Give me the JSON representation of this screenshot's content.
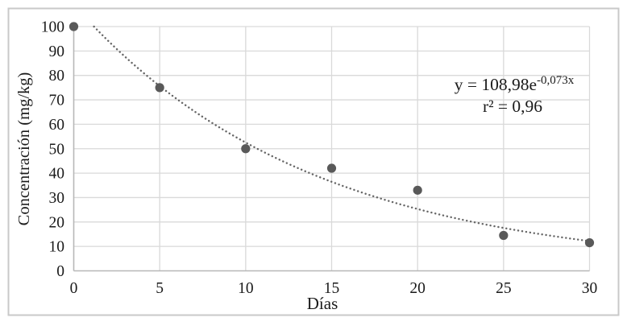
{
  "figure": {
    "background": "#ffffff",
    "border_color": "#c9c9c9"
  },
  "chart_data": {
    "type": "scatter",
    "x": [
      0,
      5,
      10,
      15,
      20,
      25,
      30
    ],
    "values": [
      100,
      75,
      50,
      42,
      33,
      14.5,
      11.5
    ],
    "title": "",
    "xlabel": "Días",
    "ylabel": "Concentración (mg/kg)",
    "xlim": [
      0,
      30
    ],
    "ylim": [
      0,
      100
    ],
    "xticks": [
      "0",
      "5",
      "10",
      "15",
      "20",
      "25",
      "30"
    ],
    "yticks": [
      "0",
      "10",
      "20",
      "30",
      "40",
      "50",
      "60",
      "70",
      "80",
      "90",
      "100"
    ],
    "grid": true,
    "legend": "none",
    "trendline": {
      "type": "exponential",
      "a": 108.98,
      "b": -0.073,
      "style": "dotted"
    },
    "annotation": {
      "equation_base": "y = 108,98e",
      "equation_exponent": "-0,073x",
      "r_squared": "r² = 0,96"
    },
    "colors": {
      "marker": "#595959",
      "trendline": "#666666",
      "gridline": "#d9d9d9",
      "axis": "#b7b7b7",
      "text": "#1a1a1a"
    }
  }
}
